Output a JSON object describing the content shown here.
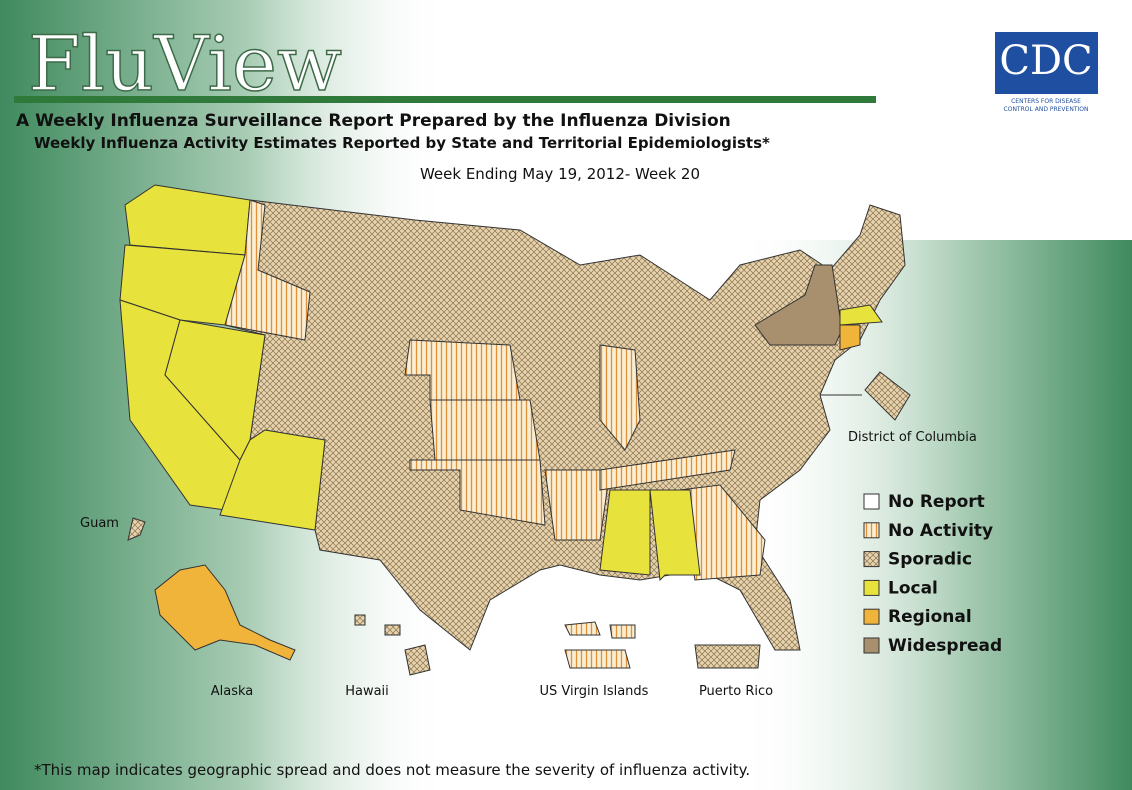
{
  "header": {
    "logo_title": "FluView",
    "title": "A Weekly Influenza Surveillance Report Prepared by the Influenza Division",
    "subtitle": "Weekly Influenza Activity Estimates Reported by State and Territorial Epidemiologists*",
    "week": "Week Ending May 19, 2012- Week 20"
  },
  "logo": {
    "text": "CDC",
    "tagline_1": "CENTERS FOR DISEASE",
    "tagline_2": "CONTROL AND PREVENTION"
  },
  "map": {
    "labels": [
      "District of Columbia",
      "Guam",
      "Alaska",
      "Hawaii",
      "US Virgin Islands",
      "Puerto Rico"
    ]
  },
  "legend": {
    "items": [
      {
        "label": "No Report",
        "color": "#ffffff"
      },
      {
        "label": "No Activity",
        "color": "#f6e9c8",
        "pattern": "stripes"
      },
      {
        "label": "Sporadic",
        "color": "#e3cfa6",
        "pattern": "hatch"
      },
      {
        "label": "Local",
        "color": "#e8e23c"
      },
      {
        "label": "Regional",
        "color": "#f0b43a"
      },
      {
        "label": "Widespread",
        "color": "#a8906e"
      }
    ]
  },
  "footnote": "*This map indicates geographic spread and does not measure the severity of influenza activity."
}
